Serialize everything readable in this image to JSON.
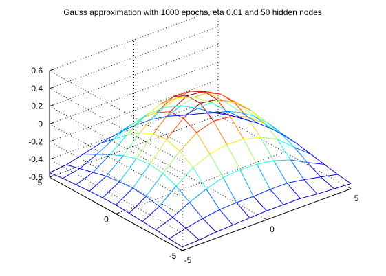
{
  "chart_data": {
    "type": "surface",
    "title": "Gauss approximation with 1000 epochs, eta 0.01 and 50 hidden nodes",
    "xlabel": "",
    "ylabel": "",
    "zlabel": "",
    "x": [
      -5,
      -4,
      -3,
      -2,
      -1,
      0,
      1,
      2,
      3,
      4,
      5
    ],
    "y": [
      -5,
      -4,
      -3,
      -2,
      -1,
      0,
      1,
      2,
      3,
      4,
      5
    ],
    "xlim": [
      -5,
      5
    ],
    "ylim": [
      -5,
      5
    ],
    "zlim": [
      -0.6,
      0.6
    ],
    "x_ticks": [
      "-5",
      "0",
      "5"
    ],
    "y_ticks": [
      "-5",
      "0",
      "5"
    ],
    "z_ticks": [
      "-0.6",
      "-0.4",
      "-0.2",
      "0",
      "0.2",
      "0.4",
      "0.6"
    ],
    "z": [
      [
        -0.56,
        -0.55,
        -0.53,
        -0.52,
        -0.51,
        -0.5,
        -0.5,
        -0.5,
        -0.52,
        -0.53,
        -0.54
      ],
      [
        -0.55,
        -0.5,
        -0.46,
        -0.43,
        -0.42,
        -0.42,
        -0.41,
        -0.41,
        -0.44,
        -0.48,
        -0.52
      ],
      [
        -0.53,
        -0.46,
        -0.36,
        -0.28,
        -0.22,
        -0.2,
        -0.21,
        -0.24,
        -0.3,
        -0.4,
        -0.49
      ],
      [
        -0.52,
        -0.42,
        -0.26,
        -0.12,
        -0.04,
        0.0,
        -0.01,
        -0.06,
        -0.15,
        -0.31,
        -0.46
      ],
      [
        -0.51,
        -0.39,
        -0.2,
        -0.02,
        0.12,
        0.18,
        0.16,
        0.09,
        -0.05,
        -0.24,
        -0.43
      ],
      [
        -0.5,
        -0.38,
        -0.18,
        0.03,
        0.2,
        0.3,
        0.27,
        0.17,
        0.01,
        -0.2,
        -0.41
      ],
      [
        -0.5,
        -0.39,
        -0.2,
        0.01,
        0.19,
        0.3,
        0.28,
        0.18,
        0.01,
        -0.21,
        -0.42
      ],
      [
        -0.51,
        -0.41,
        -0.25,
        -0.06,
        0.1,
        0.21,
        0.2,
        0.11,
        -0.05,
        -0.25,
        -0.44
      ],
      [
        -0.52,
        -0.45,
        -0.32,
        -0.17,
        -0.04,
        0.04,
        0.04,
        -0.02,
        -0.15,
        -0.32,
        -0.48
      ],
      [
        -0.53,
        -0.49,
        -0.4,
        -0.3,
        -0.21,
        -0.16,
        -0.15,
        -0.2,
        -0.3,
        -0.42,
        -0.52
      ],
      [
        -0.55,
        -0.53,
        -0.48,
        -0.43,
        -0.39,
        -0.37,
        -0.37,
        -0.4,
        -0.46,
        -0.51,
        -0.56
      ]
    ],
    "colormap": "jet",
    "grid": true
  }
}
